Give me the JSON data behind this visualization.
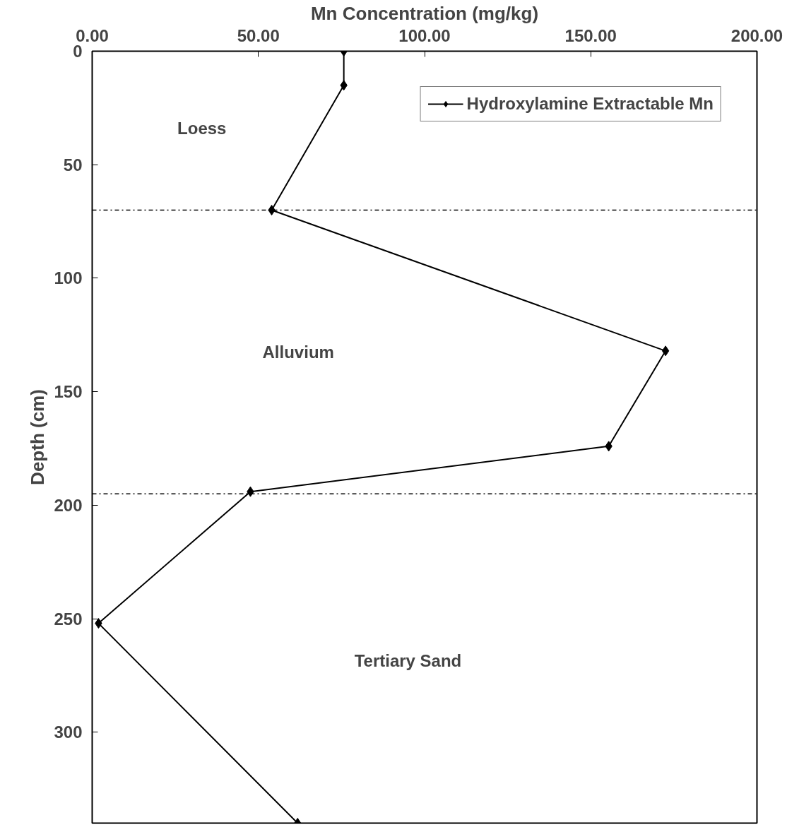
{
  "chart_data": {
    "type": "line",
    "xlabel": "Mn Concentration (mg/kg)",
    "ylabel": "Depth (cm)",
    "xlim": [
      0,
      200
    ],
    "xticks": [
      {
        "value": 0,
        "label": "0.00"
      },
      {
        "value": 50,
        "label": "50.00"
      },
      {
        "value": 100,
        "label": "100.00"
      },
      {
        "value": 150,
        "label": "150.00"
      },
      {
        "value": 200,
        "label": "200.00"
      }
    ],
    "ylim": [
      340,
      0
    ],
    "yticks": [
      0,
      50,
      100,
      150,
      200,
      250,
      300
    ],
    "series": [
      {
        "name": "Hydroxylamine Extractable Mn",
        "color": "#000000",
        "x": [
          75.7,
          75.7,
          54,
          172.5,
          155.4,
          47.6,
          1.9,
          61.8
        ],
        "values": [
          0,
          15,
          70,
          132,
          174,
          194,
          252,
          340
        ]
      }
    ],
    "marker": "diamond",
    "line_style": "solid",
    "grid": false,
    "legend": "top right",
    "ref_lines": [
      {
        "axis": "y",
        "value": 70,
        "color": "#000000",
        "line_style": "dashdot"
      },
      {
        "axis": "y",
        "value": 195,
        "color": "#000000",
        "line_style": "dashdot"
      }
    ],
    "annotations": [
      "Loess",
      "Alluvium",
      "Tertiary Sand"
    ]
  }
}
